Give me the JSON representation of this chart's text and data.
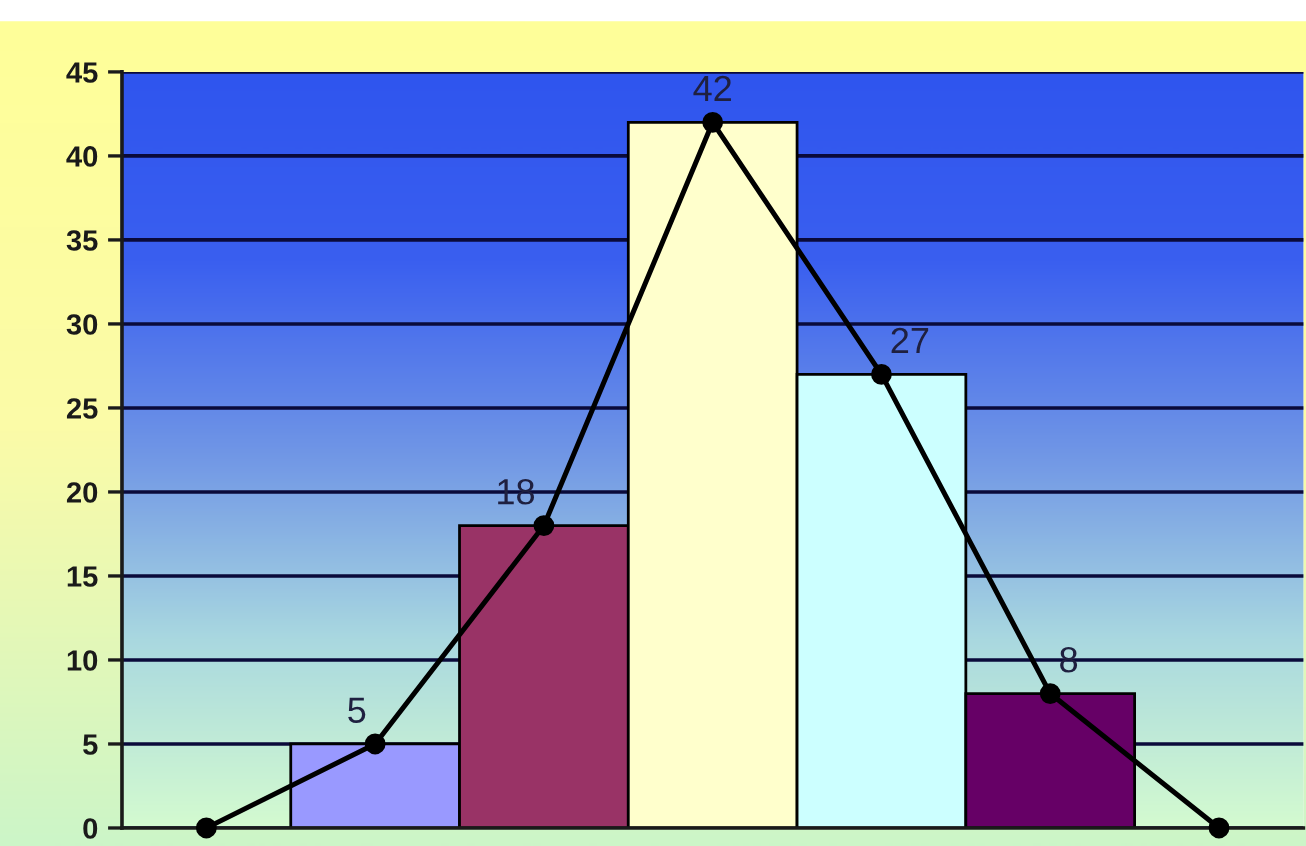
{
  "chart_data": {
    "type": "bar",
    "categories": [
      null,
      null,
      null,
      null,
      null,
      null,
      null
    ],
    "series": [
      {
        "values": [
          null,
          5,
          18,
          42,
          27,
          8,
          null
        ],
        "colors": [
          null,
          "#9999ff",
          "#993366",
          "#ffffcc",
          "#ccffff",
          "#660066",
          null
        ],
        "value_labels": [
          null,
          "5",
          "18",
          "42",
          "27",
          "8",
          null
        ]
      },
      {
        "type": "line",
        "color": "#000000",
        "marker": "circle",
        "values": [
          0,
          5,
          18,
          42,
          27,
          8,
          0
        ]
      }
    ],
    "ylim": [
      0,
      45
    ],
    "yticks": [
      0,
      5,
      10,
      15,
      20,
      25,
      30,
      35,
      40,
      45
    ],
    "grid": "y",
    "tick_labels": "y"
  }
}
